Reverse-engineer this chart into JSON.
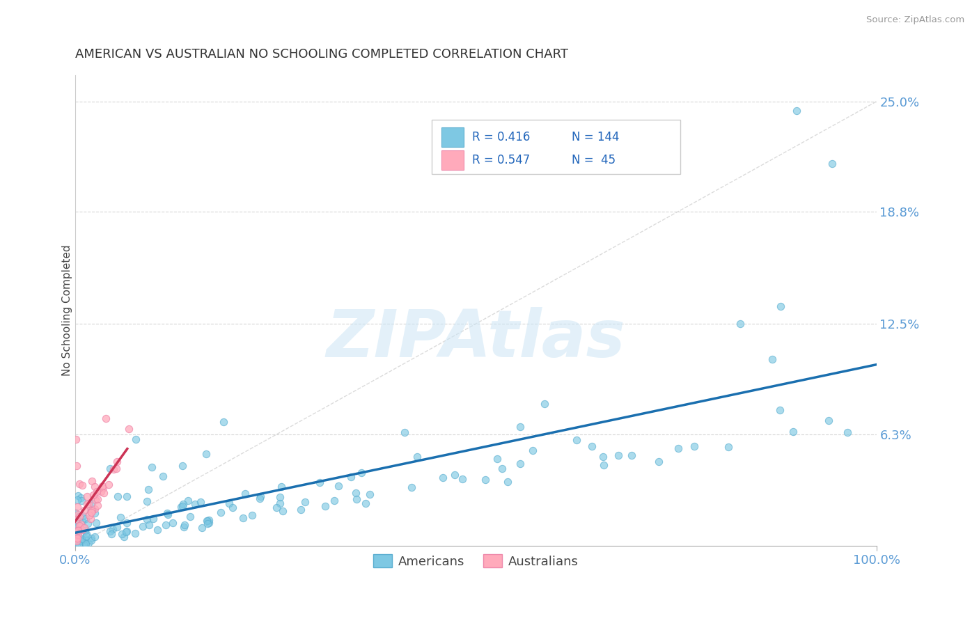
{
  "title": "AMERICAN VS AUSTRALIAN NO SCHOOLING COMPLETED CORRELATION CHART",
  "source_text": "Source: ZipAtlas.com",
  "ylabel": "No Schooling Completed",
  "xlim": [
    0,
    1.0
  ],
  "ylim": [
    0,
    0.265
  ],
  "ytick_values": [
    0.0,
    0.063,
    0.125,
    0.188,
    0.25
  ],
  "yticklabels": [
    "",
    "6.3%",
    "12.5%",
    "18.8%",
    "25.0%"
  ],
  "american_color": "#7ec8e3",
  "american_edge_color": "#5aaed0",
  "australian_color": "#ffaabb",
  "australian_edge_color": "#ee88aa",
  "american_line_color": "#1a6faf",
  "australian_line_color": "#cc3355",
  "ref_line_color": "#cccccc",
  "title_color": "#333333",
  "axis_label_color": "#444444",
  "tick_color": "#5b9bd5",
  "grid_color": "#cccccc",
  "watermark": "ZIPAtlas",
  "watermark_color": "#cce5f5",
  "source_color": "#999999"
}
